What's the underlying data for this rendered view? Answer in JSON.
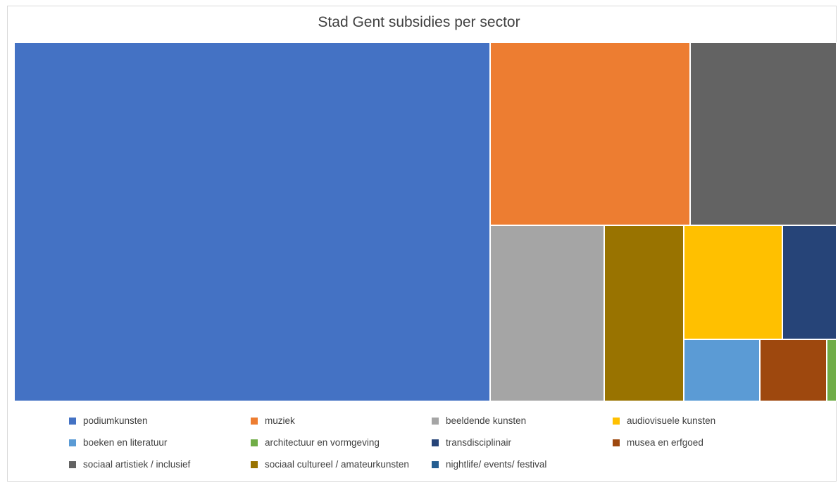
{
  "chart_data": {
    "type": "treemap",
    "title": "Stad Gent subsidies per sector",
    "legend_position": "bottom",
    "series": [
      {
        "name": "podiumkunsten",
        "value": 57.8,
        "color": "#4472C4"
      },
      {
        "name": "muziek",
        "value": 12.4,
        "color": "#ED7D31"
      },
      {
        "name": "sociaal artistiek / inclusief",
        "value": 9.1,
        "color": "#636363"
      },
      {
        "name": "beeldende kunsten",
        "value": 6.8,
        "color": "#A5A5A5"
      },
      {
        "name": "sociaal cultureel / amateurkunsten",
        "value": 4.7,
        "color": "#997300"
      },
      {
        "name": "audiovisuele kunsten",
        "value": 3.8,
        "color": "#FFC000"
      },
      {
        "name": "transdisciplinair",
        "value": 2.1,
        "color": "#264478"
      },
      {
        "name": "boeken en literatuur",
        "value": 1.6,
        "color": "#5B9BD5"
      },
      {
        "name": "musea en erfgoed",
        "value": 1.4,
        "color": "#9E480E"
      },
      {
        "name": "architectuur en vormgeving",
        "value": 0.2,
        "color": "#70AD47"
      }
    ],
    "legend": [
      {
        "label": "podiumkunsten",
        "color": "#4472C4"
      },
      {
        "label": "muziek",
        "color": "#ED7D31"
      },
      {
        "label": "beeldende kunsten",
        "color": "#A5A5A5"
      },
      {
        "label": "audiovisuele kunsten",
        "color": "#FFC000"
      },
      {
        "label": "boeken en literatuur",
        "color": "#5B9BD5"
      },
      {
        "label": "architectuur en vormgeving",
        "color": "#70AD47"
      },
      {
        "label": "transdisciplinair",
        "color": "#264478"
      },
      {
        "label": "musea en erfgoed",
        "color": "#9E480E"
      },
      {
        "label": "sociaal artistiek / inclusief",
        "color": "#636363"
      },
      {
        "label": "sociaal cultureel / amateurkunsten",
        "color": "#997300"
      },
      {
        "label": "nightlife/ events/ festival",
        "color": "#255E91"
      }
    ]
  }
}
